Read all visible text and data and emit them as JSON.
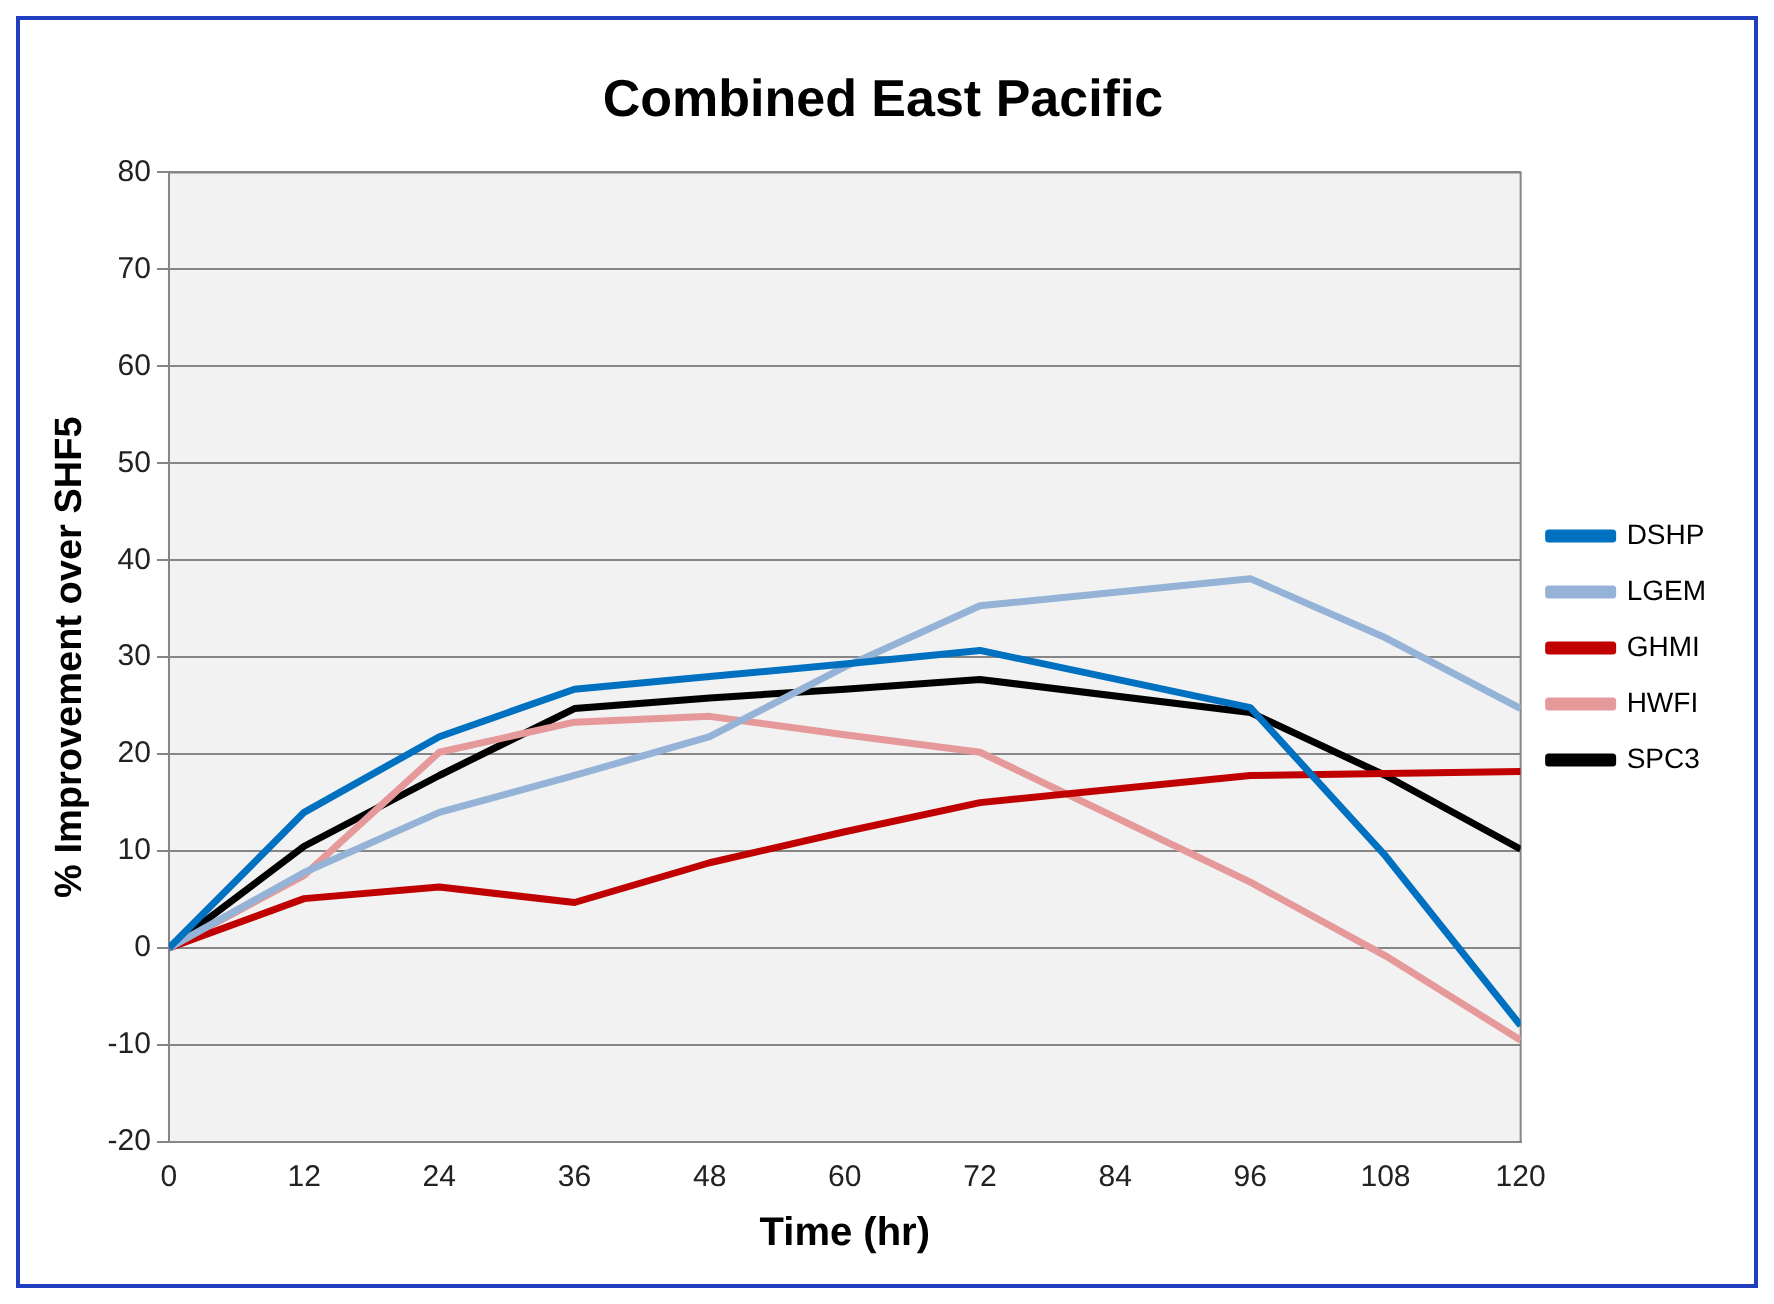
{
  "chart_data": {
    "type": "line",
    "title": "Combined East Pacific",
    "xlabel": "Time (hr)",
    "ylabel": "% Improvement over SHF5",
    "x": [
      0,
      12,
      24,
      36,
      48,
      60,
      72,
      96,
      108,
      120
    ],
    "series": [
      {
        "name": "DSHP",
        "color": "#0070c0",
        "values": [
          0,
          14,
          21.8,
          26.7,
          28,
          29.3,
          30.7,
          24.8,
          9.5,
          -8
        ]
      },
      {
        "name": "LGEM",
        "color": "#95b3d7",
        "values": [
          0,
          7.8,
          14,
          17.8,
          21.8,
          29,
          35.3,
          38.1,
          32,
          24.7
        ]
      },
      {
        "name": "GHMI",
        "color": "#c00000",
        "values": [
          0,
          5.1,
          6.3,
          4.7,
          8.8,
          12,
          15,
          17.8,
          18,
          18.2
        ]
      },
      {
        "name": "HWFI",
        "color": "#e6999a",
        "values": [
          0,
          7.5,
          20.2,
          23.3,
          23.9,
          22,
          20.2,
          6.8,
          -0.8,
          -9.5
        ]
      },
      {
        "name": "SPC3",
        "color": "#000000",
        "values": [
          0,
          10.5,
          17.8,
          24.7,
          25.8,
          26.7,
          27.7,
          24.3,
          17.8,
          10.2
        ]
      }
    ],
    "xlim": [
      0,
      120
    ],
    "xticks": [
      0,
      12,
      24,
      36,
      48,
      60,
      72,
      84,
      96,
      108,
      120
    ],
    "ylim": [
      -20,
      80
    ],
    "yticks": [
      -20,
      -10,
      0,
      10,
      20,
      30,
      40,
      50,
      60,
      70,
      80
    ],
    "grid": "y",
    "legend": "right",
    "marker": "none",
    "line_style": "solid"
  }
}
